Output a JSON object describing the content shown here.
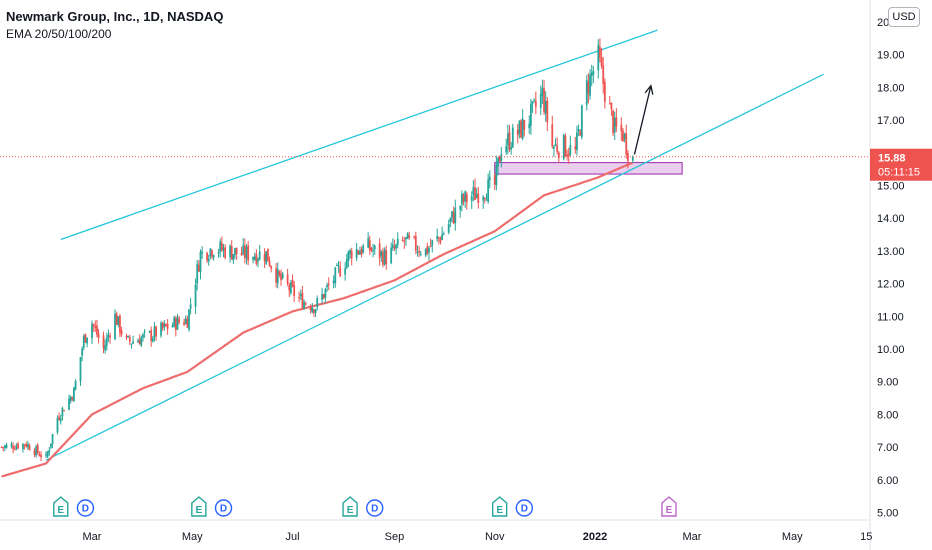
{
  "header": {
    "title": "Newmark Group, Inc., 1D, NASDAQ",
    "indicator": "EMA 20/50/100/200",
    "currency": "USD"
  },
  "price_label": {
    "price": "15.88",
    "countdown": "05:11:15"
  },
  "colors": {
    "up": "#26a69a",
    "down": "#ef5350",
    "ema": "#ef6c6c",
    "channel": "#26c6da",
    "support_zone_fill": "#e1bee7",
    "support_zone_border": "#9c27b0",
    "price_line": "#ef5350",
    "arrow": "#131722"
  },
  "events": [
    {
      "date": "2021-02-10",
      "type": "E"
    },
    {
      "date": "2021-02-25",
      "type": "D"
    },
    {
      "date": "2021-05-05",
      "type": "E"
    },
    {
      "date": "2021-05-20",
      "type": "D"
    },
    {
      "date": "2021-08-05",
      "type": "E"
    },
    {
      "date": "2021-08-20",
      "type": "D"
    },
    {
      "date": "2021-11-04",
      "type": "E"
    },
    {
      "date": "2021-11-19",
      "type": "D"
    },
    {
      "date": "2022-02-15",
      "type": "E",
      "future": true
    }
  ],
  "chart_data": {
    "type": "candlestick",
    "x_range": [
      "2021-01-05",
      "2022-06-28"
    ],
    "ylim": [
      4.9,
      20.3
    ],
    "y_ticks": [
      5.0,
      6.0,
      7.0,
      8.0,
      9.0,
      10.0,
      11.0,
      12.0,
      13.0,
      14.0,
      15.0,
      17.0,
      18.0,
      19.0,
      20.0
    ],
    "y_tick_labels": [
      "5.00",
      "6.00",
      "7.00",
      "8.00",
      "9.00",
      "10.00",
      "11.00",
      "12.00",
      "13.00",
      "14.00",
      "15.00",
      "17.00",
      "18.00",
      "19.00",
      "20.00"
    ],
    "x_ticks": [
      {
        "date": "2021-03-01",
        "label": "Mar"
      },
      {
        "date": "2021-05-01",
        "label": "May"
      },
      {
        "date": "2021-07-01",
        "label": "Jul"
      },
      {
        "date": "2021-09-01",
        "label": "Sep"
      },
      {
        "date": "2021-11-01",
        "label": "Nov"
      },
      {
        "date": "2022-01-01",
        "label": "2022"
      },
      {
        "date": "2022-03-01",
        "label": "Mar"
      },
      {
        "date": "2022-05-01",
        "label": "May"
      },
      {
        "date": "2022-06-15",
        "label": "15"
      }
    ],
    "last_price": 15.88,
    "close_anchors": [
      [
        "2021-01-05",
        7.0
      ],
      [
        "2021-01-20",
        7.1
      ],
      [
        "2021-02-01",
        6.65
      ],
      [
        "2021-02-08",
        7.9
      ],
      [
        "2021-02-18",
        8.7
      ],
      [
        "2021-02-24",
        10.3
      ],
      [
        "2021-03-01",
        10.8
      ],
      [
        "2021-03-08",
        10.0
      ],
      [
        "2021-03-15",
        11.0
      ],
      [
        "2021-03-22",
        10.2
      ],
      [
        "2021-04-05",
        10.4
      ],
      [
        "2021-04-21",
        10.8
      ],
      [
        "2021-04-28",
        10.9
      ],
      [
        "2021-05-06",
        12.9
      ],
      [
        "2021-05-14",
        13.1
      ],
      [
        "2021-06-01",
        12.9
      ],
      [
        "2021-06-15",
        12.9
      ],
      [
        "2021-06-22",
        12.2
      ],
      [
        "2021-07-06",
        11.5
      ],
      [
        "2021-07-15",
        11.3
      ],
      [
        "2021-07-28",
        12.3
      ],
      [
        "2021-08-06",
        13.0
      ],
      [
        "2021-08-16",
        13.1
      ],
      [
        "2021-08-27",
        12.8
      ],
      [
        "2021-09-07",
        13.3
      ],
      [
        "2021-09-20",
        13.0
      ],
      [
        "2021-09-30",
        13.5
      ],
      [
        "2021-10-12",
        14.5
      ],
      [
        "2021-10-22",
        14.8
      ],
      [
        "2021-11-01",
        15.0
      ],
      [
        "2021-11-05",
        16.2
      ],
      [
        "2021-11-15",
        16.6
      ],
      [
        "2021-11-24",
        17.2
      ],
      [
        "2021-11-30",
        17.8
      ],
      [
        "2021-12-06",
        16.2
      ],
      [
        "2021-12-13",
        16.2
      ],
      [
        "2021-12-20",
        16.0
      ],
      [
        "2021-12-27",
        18.0
      ],
      [
        "2022-01-03",
        18.9
      ],
      [
        "2022-01-07",
        17.9
      ],
      [
        "2022-01-13",
        16.7
      ],
      [
        "2022-01-18",
        16.6
      ],
      [
        "2022-01-21",
        16.1
      ],
      [
        "2022-01-24",
        15.88
      ]
    ],
    "ema200_anchors": [
      [
        "2021-01-05",
        6.1
      ],
      [
        "2021-02-01",
        6.5
      ],
      [
        "2021-03-01",
        8.0
      ],
      [
        "2021-04-01",
        8.8
      ],
      [
        "2021-04-28",
        9.3
      ],
      [
        "2021-06-01",
        10.5
      ],
      [
        "2021-07-01",
        11.15
      ],
      [
        "2021-08-01",
        11.55
      ],
      [
        "2021-09-01",
        12.1
      ],
      [
        "2021-10-01",
        12.9
      ],
      [
        "2021-11-01",
        13.6
      ],
      [
        "2021-12-01",
        14.7
      ],
      [
        "2022-01-03",
        15.25
      ],
      [
        "2022-01-24",
        15.7
      ]
    ],
    "channel": {
      "upper": [
        [
          "2021-02-10",
          13.35
        ],
        [
          "2022-02-08",
          19.75
        ]
      ],
      "lower": [
        [
          "2021-02-01",
          6.6
        ],
        [
          "2022-05-20",
          18.4
        ]
      ]
    },
    "support_zone": {
      "start": "2021-11-01",
      "end": "2022-02-23",
      "low": 15.35,
      "high": 15.7
    },
    "projection_arrow": [
      [
        "2022-01-25",
        15.95
      ],
      [
        "2022-02-04",
        18.05
      ]
    ]
  }
}
